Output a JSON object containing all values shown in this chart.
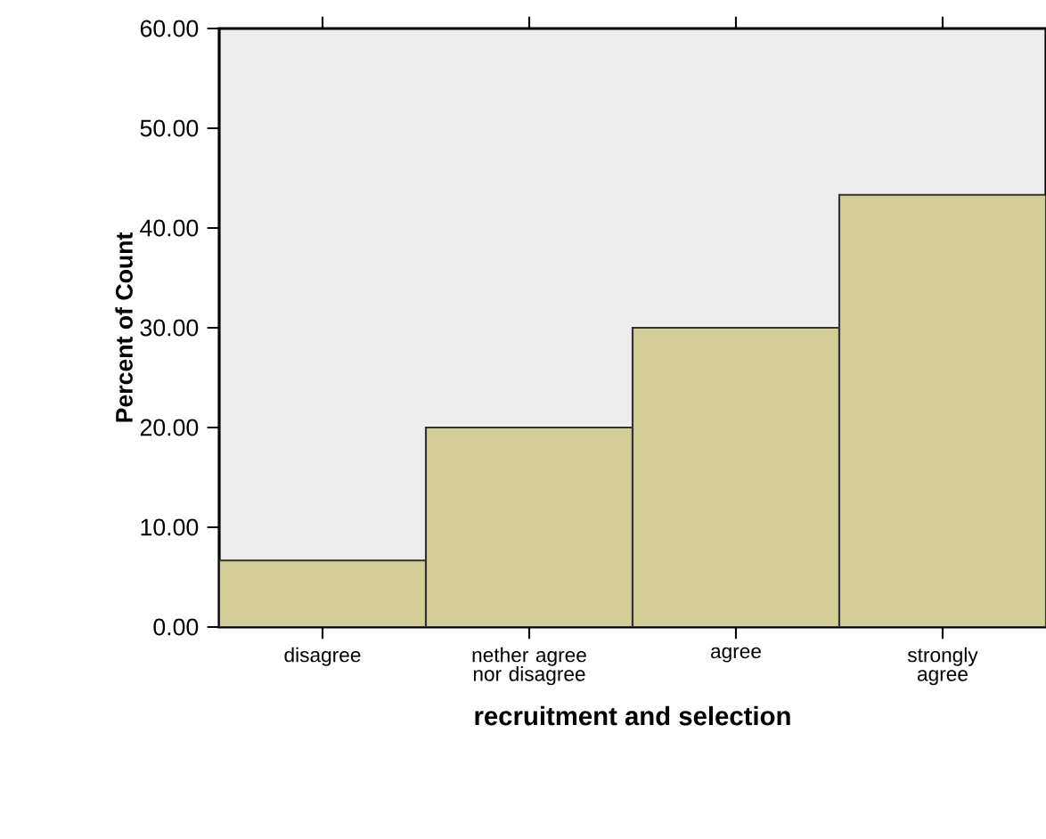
{
  "chart_data": {
    "type": "bar",
    "xlabel": "recruitment and selection",
    "ylabel": "Percent of Count",
    "categories": [
      "disagree",
      "nether agree nor disagree",
      "agree",
      "strongly agree"
    ],
    "values": [
      6.67,
      20,
      30,
      43.33
    ],
    "color": "#d3ce97",
    "ylim": [
      0,
      60
    ],
    "yticks": [
      {
        "value": 0,
        "label": "0.00"
      },
      {
        "value": 10,
        "label": "10.00"
      },
      {
        "value": 20,
        "label": "20.00"
      },
      {
        "value": 30,
        "label": "30.00"
      },
      {
        "value": 40,
        "label": "40.00"
      },
      {
        "value": 50,
        "label": "50.00"
      },
      {
        "value": 60,
        "label": "60.00"
      }
    ]
  }
}
